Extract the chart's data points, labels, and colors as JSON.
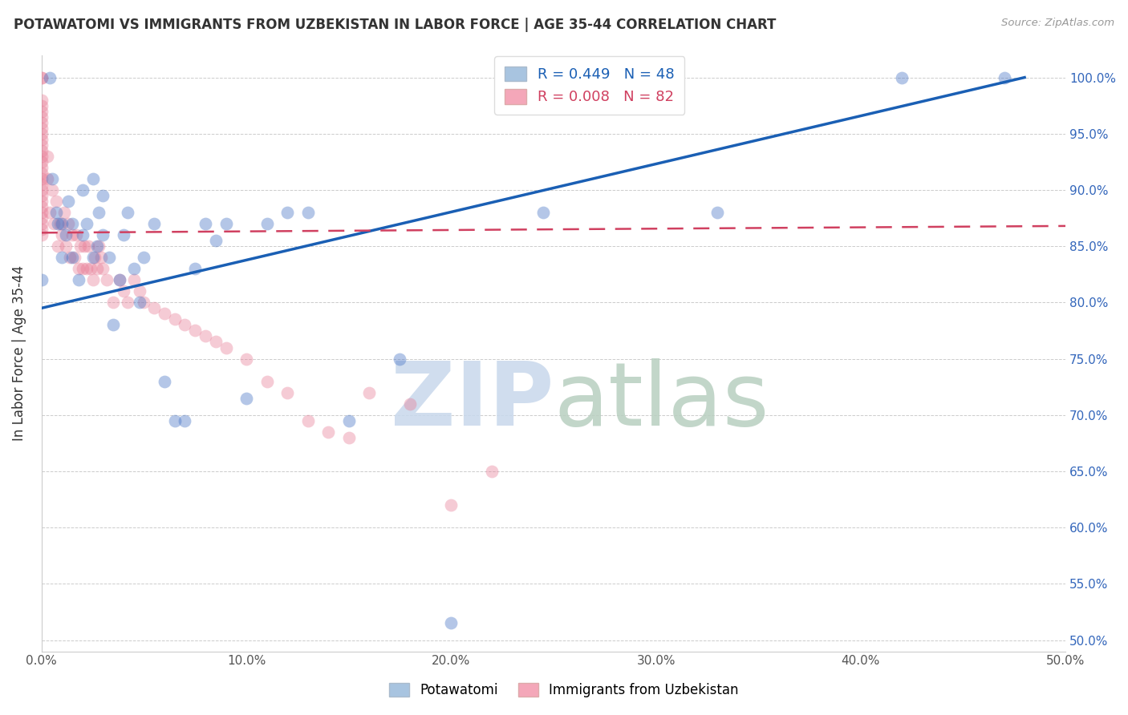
{
  "title": "POTAWATOMI VS IMMIGRANTS FROM UZBEKISTAN IN LABOR FORCE | AGE 35-44 CORRELATION CHART",
  "source": "Source: ZipAtlas.com",
  "ylabel": "In Labor Force | Age 35-44",
  "xlim": [
    0.0,
    0.5
  ],
  "ylim": [
    0.49,
    1.02
  ],
  "legend1_label": "R = 0.449   N = 48",
  "legend2_label": "R = 0.008   N = 82",
  "legend1_color": "#a8c4e0",
  "legend2_color": "#f4a7b9",
  "blue_color": "#4472c4",
  "pink_color": "#e87d96",
  "trend_blue_color": "#1a5fb4",
  "trend_pink_color": "#d04060",
  "blue_trend_x0": 0.0,
  "blue_trend_y0": 0.795,
  "blue_trend_x1": 0.48,
  "blue_trend_y1": 1.0,
  "pink_trend_x0": 0.0,
  "pink_trend_y0": 0.862,
  "pink_trend_x1": 0.5,
  "pink_trend_y1": 0.868,
  "blue_scatter_x": [
    0.0,
    0.004,
    0.005,
    0.007,
    0.008,
    0.01,
    0.01,
    0.012,
    0.013,
    0.015,
    0.015,
    0.018,
    0.02,
    0.02,
    0.022,
    0.025,
    0.025,
    0.027,
    0.028,
    0.03,
    0.03,
    0.033,
    0.035,
    0.038,
    0.04,
    0.042,
    0.045,
    0.048,
    0.05,
    0.055,
    0.06,
    0.065,
    0.07,
    0.075,
    0.08,
    0.085,
    0.09,
    0.1,
    0.11,
    0.12,
    0.13,
    0.15,
    0.175,
    0.2,
    0.245,
    0.33,
    0.42,
    0.47
  ],
  "blue_scatter_y": [
    0.82,
    1.0,
    0.91,
    0.88,
    0.87,
    0.84,
    0.87,
    0.86,
    0.89,
    0.84,
    0.87,
    0.82,
    0.9,
    0.86,
    0.87,
    0.91,
    0.84,
    0.85,
    0.88,
    0.86,
    0.895,
    0.84,
    0.78,
    0.82,
    0.86,
    0.88,
    0.83,
    0.8,
    0.84,
    0.87,
    0.73,
    0.695,
    0.695,
    0.83,
    0.87,
    0.855,
    0.87,
    0.715,
    0.87,
    0.88,
    0.88,
    0.695,
    0.75,
    0.515,
    0.88,
    0.88,
    1.0,
    1.0
  ],
  "pink_scatter_x": [
    0.0,
    0.0,
    0.0,
    0.0,
    0.0,
    0.0,
    0.0,
    0.0,
    0.0,
    0.0,
    0.0,
    0.0,
    0.0,
    0.0,
    0.0,
    0.0,
    0.0,
    0.0,
    0.0,
    0.0,
    0.0,
    0.0,
    0.0,
    0.0,
    0.0,
    0.0,
    0.0,
    0.003,
    0.003,
    0.004,
    0.005,
    0.006,
    0.007,
    0.008,
    0.009,
    0.01,
    0.011,
    0.012,
    0.013,
    0.014,
    0.015,
    0.016,
    0.017,
    0.018,
    0.019,
    0.02,
    0.021,
    0.022,
    0.023,
    0.024,
    0.025,
    0.026,
    0.027,
    0.028,
    0.029,
    0.03,
    0.032,
    0.035,
    0.038,
    0.04,
    0.042,
    0.045,
    0.048,
    0.05,
    0.055,
    0.06,
    0.065,
    0.07,
    0.075,
    0.08,
    0.085,
    0.09,
    0.1,
    0.11,
    0.12,
    0.13,
    0.14,
    0.15,
    0.16,
    0.18,
    0.2,
    0.22
  ],
  "pink_scatter_y": [
    0.86,
    0.865,
    0.87,
    0.875,
    0.88,
    0.885,
    0.89,
    0.895,
    0.9,
    0.905,
    0.91,
    0.915,
    0.92,
    0.925,
    0.93,
    0.935,
    0.94,
    0.945,
    0.95,
    0.955,
    0.96,
    0.965,
    0.97,
    0.975,
    0.98,
    1.0,
    1.0,
    0.91,
    0.93,
    0.88,
    0.9,
    0.87,
    0.89,
    0.85,
    0.87,
    0.86,
    0.88,
    0.85,
    0.87,
    0.84,
    0.86,
    0.84,
    0.86,
    0.83,
    0.85,
    0.83,
    0.85,
    0.83,
    0.85,
    0.83,
    0.82,
    0.84,
    0.83,
    0.85,
    0.84,
    0.83,
    0.82,
    0.8,
    0.82,
    0.81,
    0.8,
    0.82,
    0.81,
    0.8,
    0.795,
    0.79,
    0.785,
    0.78,
    0.775,
    0.77,
    0.765,
    0.76,
    0.75,
    0.73,
    0.72,
    0.695,
    0.685,
    0.68,
    0.72,
    0.71,
    0.62,
    0.65
  ]
}
